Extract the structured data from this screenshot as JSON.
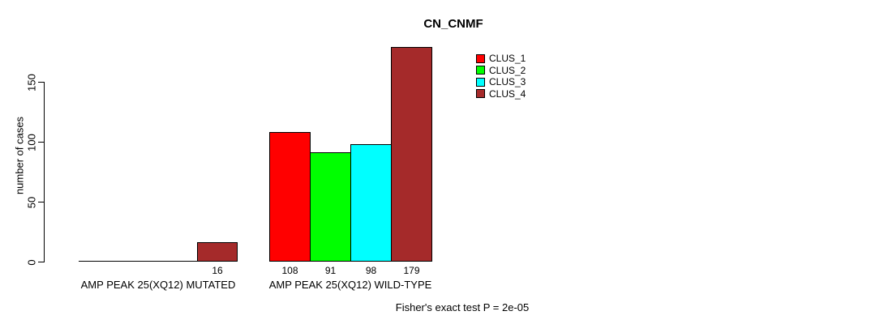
{
  "title": "CN_CNMF",
  "footer": "Fisher's exact test P = 2e-05",
  "y_axis": {
    "label": "number of cases",
    "ticks": [
      0,
      50,
      100,
      150
    ]
  },
  "legend": {
    "items": [
      {
        "label": "CLUS_1",
        "color": "#FF0000"
      },
      {
        "label": "CLUS_2",
        "color": "#00FF00"
      },
      {
        "label": "CLUS_3",
        "color": "#00FFFF"
      },
      {
        "label": "CLUS_4",
        "color": "#A52A2A"
      }
    ]
  },
  "chart_data": {
    "type": "bar",
    "title": "CN_CNMF",
    "xlabel": "",
    "ylabel": "number of cases",
    "ylim": [
      0,
      179
    ],
    "yticks": [
      0,
      50,
      100,
      150
    ],
    "grid": false,
    "legend_position": "top-right",
    "categories": [
      "AMP PEAK 25(XQ12) MUTATED",
      "AMP PEAK 25(XQ12) WILD-TYPE"
    ],
    "series": [
      {
        "name": "CLUS_1",
        "color": "#FF0000",
        "values": [
          0,
          108
        ]
      },
      {
        "name": "CLUS_2",
        "color": "#00FF00",
        "values": [
          0,
          91
        ]
      },
      {
        "name": "CLUS_3",
        "color": "#00FFFF",
        "values": [
          0,
          98
        ]
      },
      {
        "name": "CLUS_4",
        "color": "#A52A2A",
        "values": [
          16,
          179
        ]
      }
    ],
    "bar_value_labels": [
      [
        null,
        null,
        null,
        "16"
      ],
      [
        "108",
        "91",
        "98",
        "179"
      ]
    ],
    "annotation": "Fisher's exact test P = 2e-05"
  }
}
